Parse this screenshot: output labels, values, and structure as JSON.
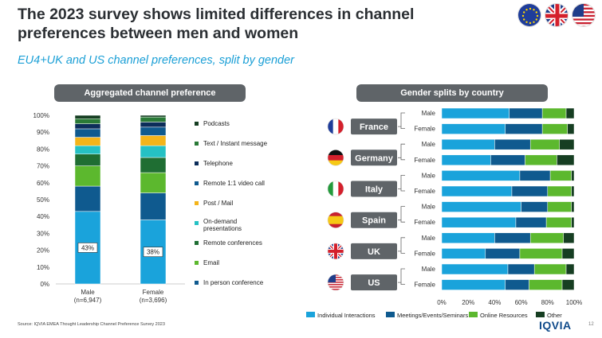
{
  "header": {
    "title": "The 2023 survey shows limited differences in channel preferences between men and women",
    "subtitle": "EU4+UK and US channel preferences, split by gender",
    "flags": [
      "eu-flag-icon",
      "uk-flag-icon",
      "us-flag-icon"
    ]
  },
  "left_panel": {
    "header": "Aggregated channel preference"
  },
  "right_panel": {
    "header": "Gender splits by country"
  },
  "footer": {
    "source": "Source: IQVIA EMEA Thought Leadership Channel Preference Survey 2023",
    "logo": "IQVIA",
    "page": "12"
  },
  "chart_data": [
    {
      "type": "bar",
      "stacked": true,
      "title": "Aggregated channel preference",
      "categories": [
        "Male\n(n=6,947)",
        "Female\n(n=3,696)"
      ],
      "category_labels": [
        [
          "Male",
          "(n=6,947)"
        ],
        [
          "Female",
          "(n=3,696)"
        ]
      ],
      "ylim": [
        0,
        100
      ],
      "yticks": [
        "0%",
        "10%",
        "20%",
        "30%",
        "40%",
        "50%",
        "60%",
        "70%",
        "80%",
        "90%",
        "100%"
      ],
      "legend_position": "right",
      "series": [
        {
          "name": "In person conference",
          "color": "#1aa3db",
          "values": [
            43,
            38
          ]
        },
        {
          "name": "Email",
          "color": "#0f5a8f",
          "values": [
            15,
            16
          ]
        },
        {
          "name": "Remote conferences",
          "color": "#5cb82e",
          "values": [
            12,
            12
          ]
        },
        {
          "name": "On-demand presentations",
          "color": "#1f6e33",
          "values": [
            7,
            9
          ]
        },
        {
          "name": "Post / Mail",
          "color": "#25c1c4",
          "values": [
            5,
            7
          ]
        },
        {
          "name": "Remote 1:1 video call",
          "color": "#f4b41a",
          "values": [
            5,
            6
          ]
        },
        {
          "name": "Telephone",
          "color": "#0f5a8f",
          "values": [
            5,
            5
          ]
        },
        {
          "name": "Text / Instant message",
          "color": "#0c2d5a",
          "values": [
            3,
            3
          ]
        },
        {
          "name": "Podcasts",
          "color": "#2a7a37",
          "values": [
            3,
            3
          ]
        },
        {
          "name": "Other",
          "color": "#163e22",
          "values": [
            2,
            1
          ]
        }
      ],
      "legend": [
        {
          "label": "Podcasts",
          "color": "#163e22"
        },
        {
          "label": "Text / Instant message",
          "color": "#2a7a37"
        },
        {
          "label": "Telephone",
          "color": "#0c2d5a"
        },
        {
          "label": "Remote 1:1 video call",
          "color": "#0f5a8f"
        },
        {
          "label": "Post / Mail",
          "color": "#f4b41a"
        },
        {
          "label": "On-demand presentations",
          "color": "#25c1c4"
        },
        {
          "label": "Remote conferences",
          "color": "#1f6e33"
        },
        {
          "label": "Email",
          "color": "#5cb82e"
        },
        {
          "label": "In person conference",
          "color": "#0f5a8f"
        }
      ],
      "data_labels": [
        "43%",
        "38%"
      ]
    },
    {
      "type": "bar",
      "orientation": "horizontal",
      "stacked": true,
      "title": "Gender splits by country",
      "xlim": [
        0,
        100
      ],
      "xticks": [
        "0%",
        "20%",
        "40%",
        "60%",
        "80%",
        "100%"
      ],
      "legend_position": "bottom",
      "countries": [
        "France",
        "Germany",
        "Italy",
        "Spain",
        "UK",
        "US"
      ],
      "country_flags": [
        "france-flag-icon",
        "germany-flag-icon",
        "italy-flag-icon",
        "spain-flag-icon",
        "uk-flag-icon",
        "us-flag-icon"
      ],
      "genders": [
        "Male",
        "Female"
      ],
      "series_names": [
        "Individual Interactions",
        "Meetings/Events/Seminars",
        "Online Resources",
        "Other"
      ],
      "series_colors": [
        "#1aa3db",
        "#0f5a8f",
        "#5cb82e",
        "#163e22"
      ],
      "rows": [
        {
          "country": "France",
          "gender": "Male",
          "values": [
            51,
            25,
            18,
            6
          ]
        },
        {
          "country": "France",
          "gender": "Female",
          "values": [
            48,
            28,
            19,
            5
          ]
        },
        {
          "country": "Germany",
          "gender": "Male",
          "values": [
            40,
            27,
            22,
            11
          ]
        },
        {
          "country": "Germany",
          "gender": "Female",
          "values": [
            37,
            26,
            24,
            13
          ]
        },
        {
          "country": "Italy",
          "gender": "Male",
          "values": [
            59,
            23,
            16,
            2
          ]
        },
        {
          "country": "Italy",
          "gender": "Female",
          "values": [
            53,
            27,
            18,
            2
          ]
        },
        {
          "country": "Spain",
          "gender": "Male",
          "values": [
            60,
            20,
            18,
            2
          ]
        },
        {
          "country": "Spain",
          "gender": "Female",
          "values": [
            56,
            23,
            19,
            2
          ]
        },
        {
          "country": "UK",
          "gender": "Male",
          "values": [
            40,
            27,
            25,
            8
          ]
        },
        {
          "country": "UK",
          "gender": "Female",
          "values": [
            33,
            26,
            32,
            9
          ]
        },
        {
          "country": "US",
          "gender": "Male",
          "values": [
            50,
            20,
            24,
            6
          ]
        },
        {
          "country": "US",
          "gender": "Female",
          "values": [
            48,
            18,
            25,
            9
          ]
        }
      ]
    }
  ]
}
